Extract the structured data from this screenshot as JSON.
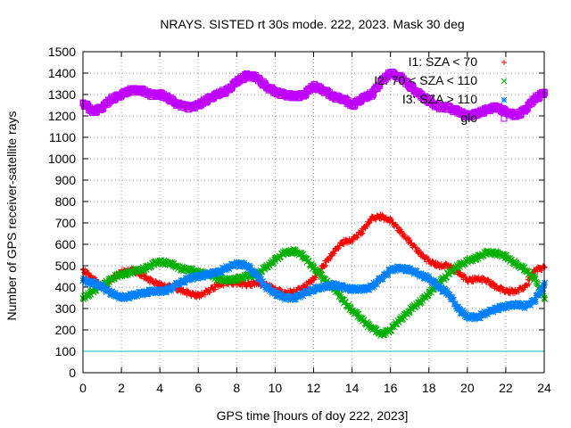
{
  "chart_data": {
    "type": "scatter",
    "title": "NRAYS. SISTED rt 30s mode. 222, 2023. Mask 30 deg",
    "xlabel": "GPS time [hours of doy 222, 2023]",
    "ylabel": "Number of GPS receiver-satellite rays",
    "xlim": [
      0,
      24
    ],
    "ylim": [
      0,
      1500
    ],
    "xticks": [
      "0",
      "2",
      "4",
      "6",
      "8",
      "10",
      "12",
      "14",
      "16",
      "18",
      "20",
      "22",
      "24"
    ],
    "yticks": [
      "0",
      "100",
      "200",
      "300",
      "400",
      "500",
      "600",
      "700",
      "800",
      "900",
      "1000",
      "1100",
      "1200",
      "1300",
      "1400",
      "1500"
    ],
    "grid": true,
    "legend_position": "top-right",
    "threshold_line": {
      "y": 100,
      "color": "#00c0c0"
    },
    "series": [
      {
        "name": "I1: SZA < 70",
        "marker": "plus",
        "color": "#ff0000",
        "x": [
          0,
          0.5,
          1,
          1.5,
          2,
          2.5,
          3,
          3.5,
          4,
          4.5,
          5,
          5.5,
          6,
          6.5,
          7,
          7.5,
          8,
          8.5,
          9,
          9.5,
          10,
          10.5,
          11,
          11.5,
          12,
          12.5,
          13,
          13.5,
          14,
          14.5,
          15,
          15.5,
          16,
          16.5,
          17,
          17.5,
          18,
          18.5,
          19,
          19.5,
          20,
          20.5,
          21,
          21.5,
          22,
          22.5,
          23,
          23.5,
          24
        ],
        "y": [
          480,
          440,
          400,
          440,
          470,
          480,
          460,
          430,
          410,
          400,
          390,
          370,
          360,
          380,
          410,
          420,
          420,
          410,
          420,
          410,
          390,
          370,
          380,
          400,
          440,
          500,
          560,
          610,
          620,
          660,
          720,
          730,
          710,
          660,
          610,
          560,
          520,
          500,
          500,
          470,
          430,
          440,
          430,
          400,
          380,
          380,
          400,
          480,
          490
        ]
      },
      {
        "name": "I2: 70 < SZA < 110",
        "marker": "cross",
        "color": "#00b000",
        "x": [
          0,
          0.5,
          1,
          1.5,
          2,
          2.5,
          3,
          3.5,
          4,
          4.5,
          5,
          5.5,
          6,
          6.5,
          7,
          7.5,
          8,
          8.5,
          9,
          9.5,
          10,
          10.5,
          11,
          11.5,
          12,
          12.5,
          13,
          13.5,
          14,
          14.5,
          15,
          15.5,
          16,
          16.5,
          17,
          17.5,
          18,
          18.5,
          19,
          19.5,
          20,
          20.5,
          21,
          21.5,
          22,
          22.5,
          23,
          23.5,
          24
        ],
        "y": [
          350,
          380,
          410,
          440,
          460,
          470,
          480,
          500,
          520,
          510,
          490,
          480,
          470,
          460,
          440,
          430,
          440,
          450,
          460,
          490,
          530,
          560,
          570,
          540,
          490,
          440,
          400,
          340,
          290,
          250,
          210,
          180,
          200,
          250,
          290,
          330,
          370,
          420,
          460,
          500,
          520,
          540,
          560,
          560,
          540,
          510,
          480,
          440,
          350
        ]
      },
      {
        "name": "I3: SZA > 110",
        "marker": "star",
        "color": "#0080ff",
        "x": [
          0,
          0.5,
          1,
          1.5,
          2,
          2.5,
          3,
          3.5,
          4,
          4.5,
          5,
          5.5,
          6,
          6.5,
          7,
          7.5,
          8,
          8.5,
          9,
          9.5,
          10,
          10.5,
          11,
          11.5,
          12,
          12.5,
          13,
          13.5,
          14,
          14.5,
          15,
          15.5,
          16,
          16.5,
          17,
          17.5,
          18,
          18.5,
          19,
          19.5,
          20,
          20.5,
          21,
          21.5,
          22,
          22.5,
          23,
          23.5,
          24
        ],
        "y": [
          430,
          420,
          400,
          370,
          350,
          360,
          370,
          380,
          380,
          390,
          420,
          440,
          450,
          460,
          470,
          490,
          510,
          500,
          460,
          400,
          370,
          350,
          350,
          370,
          390,
          400,
          410,
          400,
          390,
          390,
          400,
          440,
          480,
          490,
          480,
          460,
          440,
          400,
          370,
          300,
          260,
          260,
          280,
          300,
          310,
          320,
          310,
          340,
          410
        ]
      },
      {
        "name": "glo",
        "marker": "square",
        "color": "#c000ff",
        "x": [
          0,
          0.5,
          1,
          1.5,
          2,
          2.5,
          3,
          3.5,
          4,
          4.5,
          5,
          5.5,
          6,
          6.5,
          7,
          7.5,
          8,
          8.5,
          9,
          9.5,
          10,
          10.5,
          11,
          11.5,
          12,
          12.5,
          13,
          13.5,
          14,
          14.5,
          15,
          15.5,
          16,
          16.5,
          17,
          17.5,
          18,
          18.5,
          19,
          19.5,
          20,
          20.5,
          21,
          21.5,
          22,
          22.5,
          23,
          23.5,
          24
        ],
        "y": [
          1260,
          1220,
          1240,
          1280,
          1300,
          1320,
          1320,
          1300,
          1300,
          1280,
          1250,
          1240,
          1250,
          1280,
          1300,
          1320,
          1360,
          1390,
          1380,
          1340,
          1310,
          1300,
          1290,
          1300,
          1340,
          1320,
          1290,
          1280,
          1250,
          1280,
          1300,
          1360,
          1400,
          1380,
          1340,
          1300,
          1270,
          1240,
          1240,
          1220,
          1200,
          1210,
          1230,
          1240,
          1220,
          1200,
          1230,
          1280,
          1310
        ]
      }
    ]
  }
}
